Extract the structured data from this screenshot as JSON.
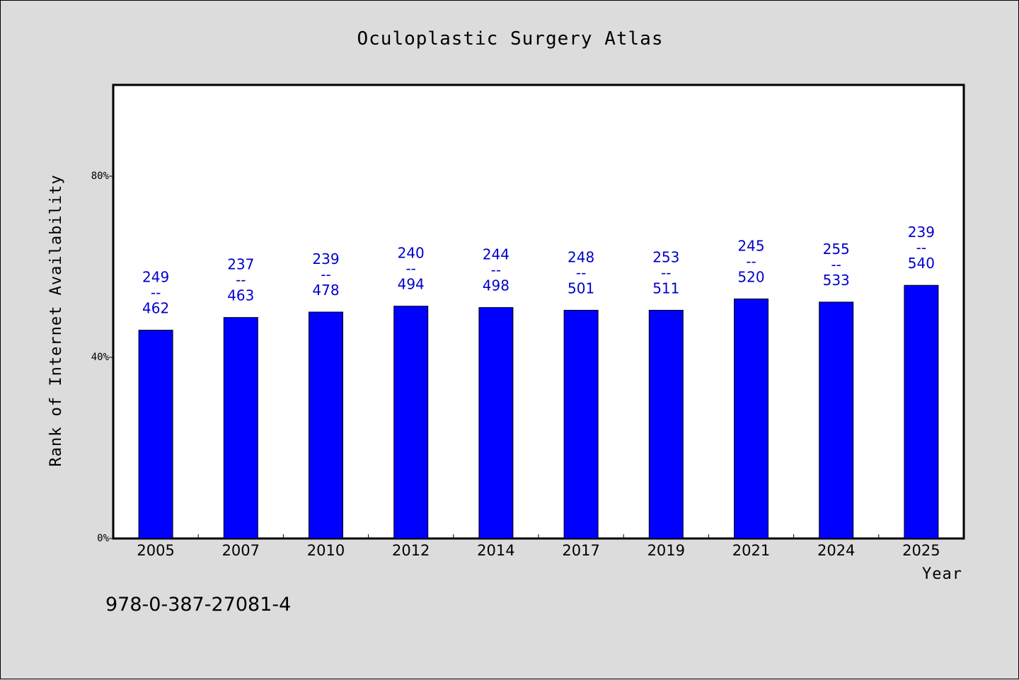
{
  "chart_data": {
    "type": "bar",
    "title": "Oculoplastic Surgery Atlas",
    "xlabel": "Year",
    "ylabel": "Rank of Internet Availability",
    "categories": [
      "2005",
      "2007",
      "2010",
      "2012",
      "2014",
      "2017",
      "2019",
      "2021",
      "2024",
      "2025"
    ],
    "values": [
      46.0,
      48.8,
      50.0,
      51.3,
      51.0,
      50.4,
      50.4,
      52.9,
      52.2,
      55.9
    ],
    "data_labels": [
      {
        "top": "249",
        "sep": "--",
        "bottom": "462"
      },
      {
        "top": "237",
        "sep": "--",
        "bottom": "463"
      },
      {
        "top": "239",
        "sep": "--",
        "bottom": "478"
      },
      {
        "top": "240",
        "sep": "--",
        "bottom": "494"
      },
      {
        "top": "244",
        "sep": "--",
        "bottom": "498"
      },
      {
        "top": "248",
        "sep": "--",
        "bottom": "501"
      },
      {
        "top": "253",
        "sep": "--",
        "bottom": "511"
      },
      {
        "top": "245",
        "sep": "--",
        "bottom": "520"
      },
      {
        "top": "255",
        "sep": "--",
        "bottom": "533"
      },
      {
        "top": "239",
        "sep": "--",
        "bottom": "540"
      }
    ],
    "y_ticks": [
      {
        "value": 0,
        "label": "0%"
      },
      {
        "value": 40,
        "label": "40%"
      },
      {
        "value": 80,
        "label": "80%"
      }
    ],
    "ylim": [
      0,
      100
    ],
    "grid": false,
    "legend": "none",
    "bar_color": "#0000ff",
    "label_color": "#0000cc"
  },
  "footer": {
    "code": "978-0-387-27081-4"
  }
}
